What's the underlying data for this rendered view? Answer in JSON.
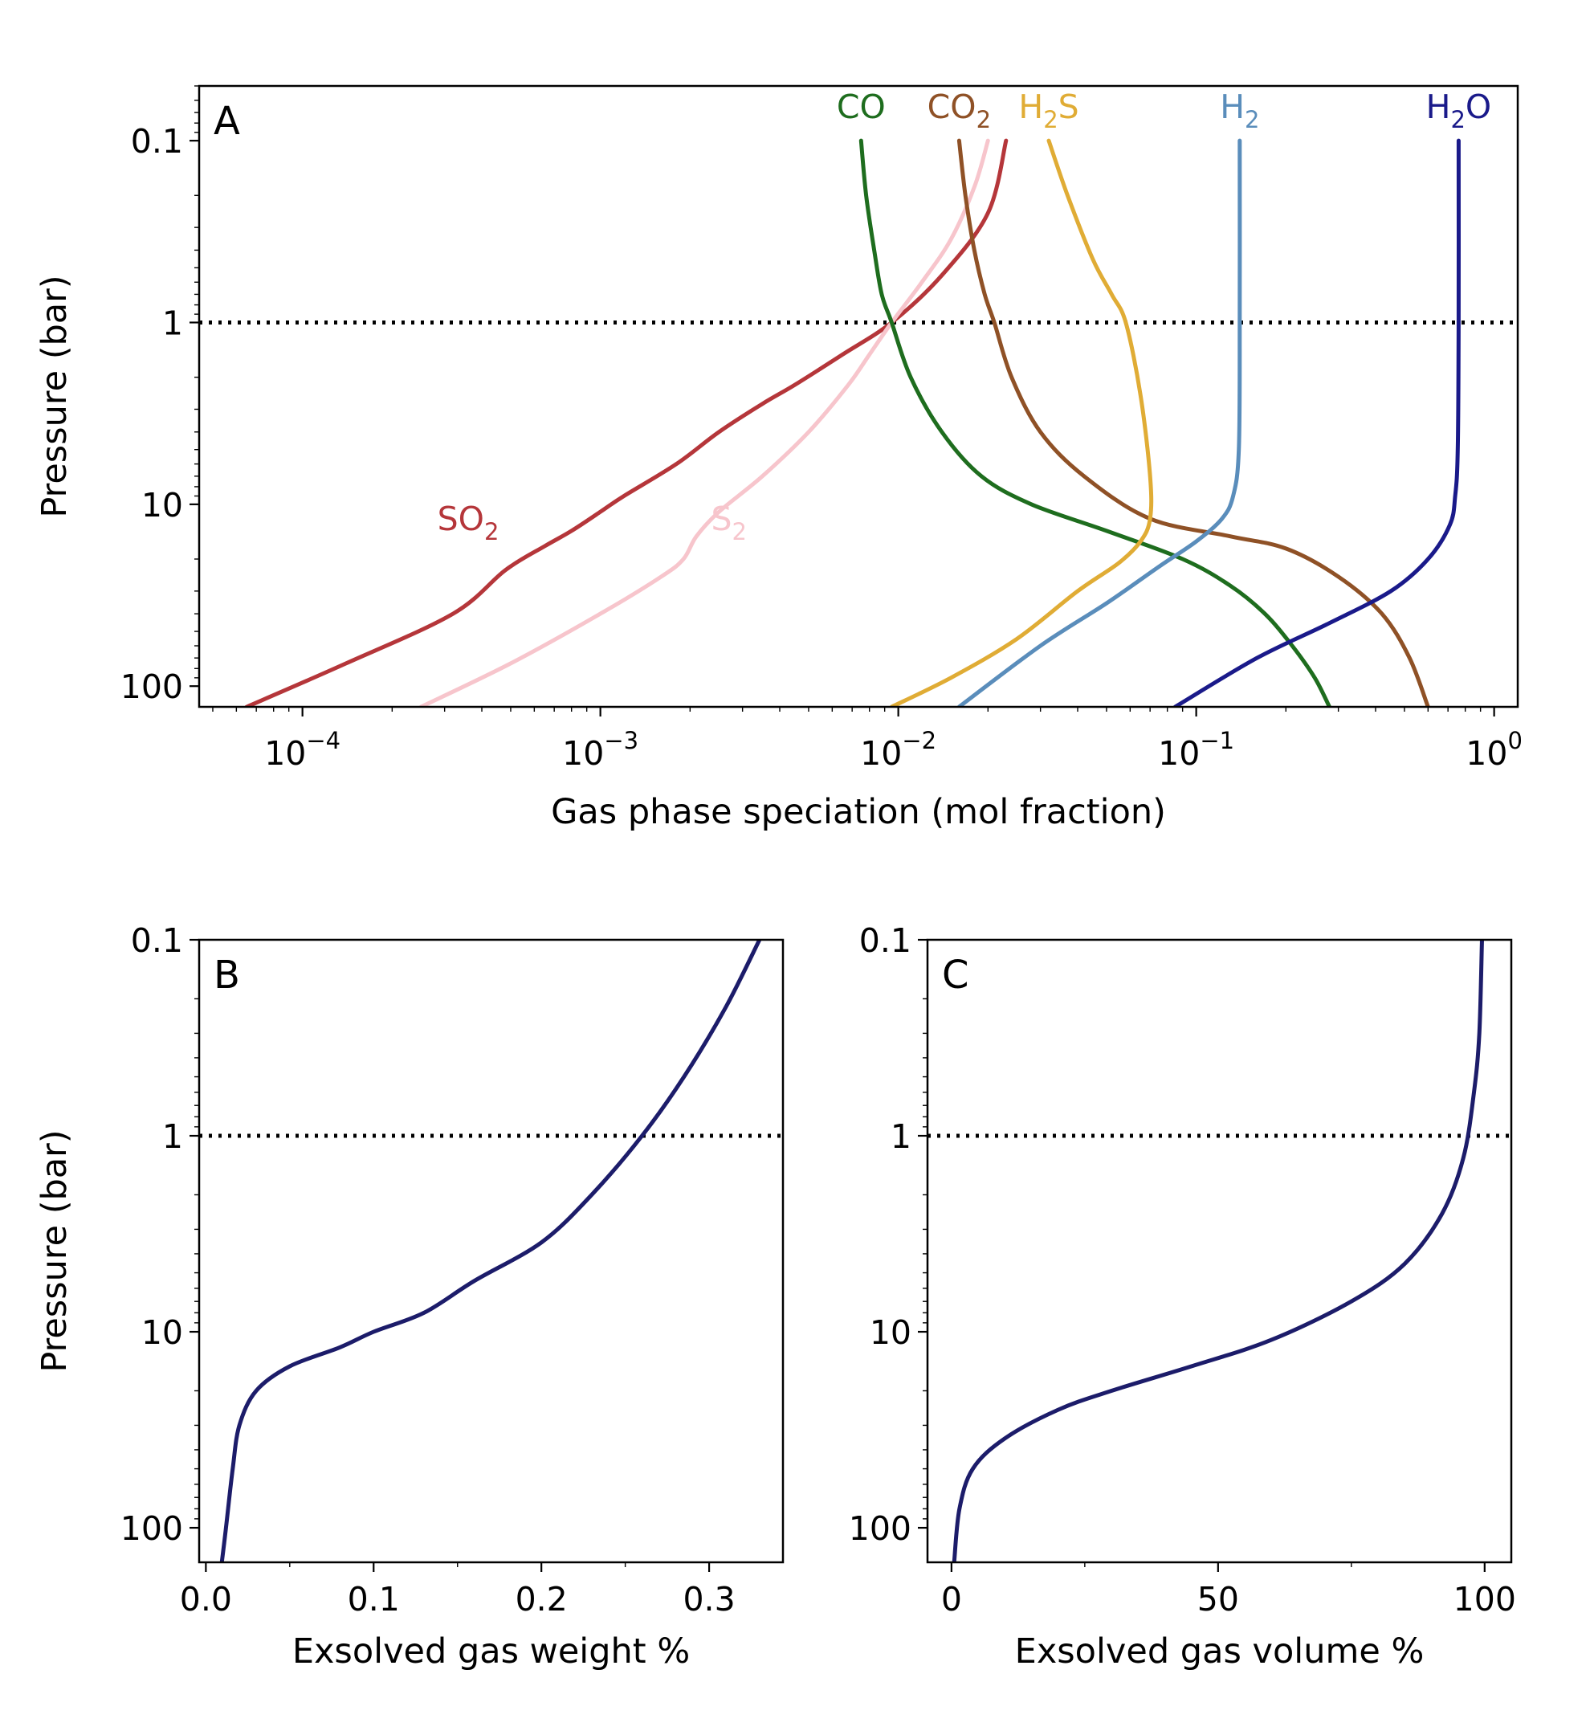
{
  "chart_data": [
    {
      "panel": "A",
      "type": "line",
      "xscale": "log",
      "yscale": "log",
      "y_inverted": true,
      "xlabel": "Gas phase speciation (mol fraction)",
      "ylabel": "Pressure (bar)",
      "xlim": [
        4.5e-05,
        1.2
      ],
      "ylim": [
        0.05,
        130
      ],
      "x_ticks": [
        0.0001,
        0.001,
        0.01,
        0.1,
        1
      ],
      "x_tick_labels": [
        {
          "base": "10",
          "exp": "−4"
        },
        {
          "base": "10",
          "exp": "−3"
        },
        {
          "base": "10",
          "exp": "−2"
        },
        {
          "base": "10",
          "exp": "−1"
        },
        {
          "base": "10",
          "exp": "0"
        }
      ],
      "y_ticks": [
        0.1,
        1,
        10,
        100
      ],
      "y_tick_labels": [
        "0.1",
        "1",
        "10",
        "100"
      ],
      "reference_line": {
        "y": 1,
        "style": "dotted"
      },
      "series": [
        {
          "name": "SO2",
          "label": {
            "base": "SO",
            "sub": "2"
          },
          "label_placement": "left",
          "color": "#b5363a",
          "points": [
            [
              6.5e-05,
              130
            ],
            [
              0.00014,
              75
            ],
            [
              0.00032,
              40
            ],
            [
              0.00048,
              23
            ],
            [
              0.00065,
              17
            ],
            [
              0.0008,
              14
            ],
            [
              0.001,
              11
            ],
            [
              0.0012,
              9
            ],
            [
              0.0018,
              6
            ],
            [
              0.0025,
              4
            ],
            [
              0.0035,
              2.8
            ],
            [
              0.0045,
              2.2
            ],
            [
              0.0065,
              1.5
            ],
            [
              0.0095,
              1
            ],
            [
              0.014,
              0.55
            ],
            [
              0.02,
              0.25
            ],
            [
              0.023,
              0.1
            ]
          ]
        },
        {
          "name": "S2",
          "label": {
            "base": "S",
            "sub": "2"
          },
          "label_placement": "right",
          "color": "#f7c5cc",
          "points": [
            [
              0.00025,
              130
            ],
            [
              0.0005,
              75
            ],
            [
              0.001,
              40
            ],
            [
              0.0016,
              25
            ],
            [
              0.0019,
              20
            ],
            [
              0.0021,
              15
            ],
            [
              0.0025,
              11
            ],
            [
              0.0035,
              7
            ],
            [
              0.005,
              4
            ],
            [
              0.0068,
              2.2
            ],
            [
              0.008,
              1.5
            ],
            [
              0.0095,
              1
            ],
            [
              0.012,
              0.6
            ],
            [
              0.015,
              0.35
            ],
            [
              0.018,
              0.18
            ],
            [
              0.02,
              0.1
            ]
          ]
        },
        {
          "name": "CO",
          "label": {
            "base": "CO",
            "sub": ""
          },
          "label_placement": "top",
          "color": "#1e6d1e",
          "points": [
            [
              0.0075,
              0.1
            ],
            [
              0.0078,
              0.2
            ],
            [
              0.0083,
              0.4
            ],
            [
              0.0088,
              0.7
            ],
            [
              0.0095,
              1
            ],
            [
              0.011,
              2
            ],
            [
              0.014,
              4
            ],
            [
              0.019,
              7
            ],
            [
              0.028,
              10
            ],
            [
              0.05,
              14
            ],
            [
              0.09,
              20
            ],
            [
              0.13,
              28
            ],
            [
              0.17,
              40
            ],
            [
              0.21,
              60
            ],
            [
              0.25,
              90
            ],
            [
              0.28,
              130
            ]
          ]
        },
        {
          "name": "CO2",
          "label": {
            "base": "CO",
            "sub": "2"
          },
          "label_placement": "top",
          "color": "#8f5126",
          "points": [
            [
              0.016,
              0.1
            ],
            [
              0.0168,
              0.2
            ],
            [
              0.018,
              0.4
            ],
            [
              0.0195,
              0.7
            ],
            [
              0.021,
              1
            ],
            [
              0.024,
              2
            ],
            [
              0.03,
              4
            ],
            [
              0.042,
              7
            ],
            [
              0.07,
              12
            ],
            [
              0.13,
              15
            ],
            [
              0.2,
              17.5
            ],
            [
              0.3,
              25
            ],
            [
              0.42,
              40
            ],
            [
              0.52,
              70
            ],
            [
              0.6,
              130
            ]
          ]
        },
        {
          "name": "H2S",
          "label": {
            "base": "H",
            "sub": "2",
            "tail": "S"
          },
          "label_placement": "top",
          "color": "#e0ac35",
          "points": [
            [
              0.032,
              0.1
            ],
            [
              0.037,
              0.2
            ],
            [
              0.045,
              0.45
            ],
            [
              0.052,
              0.7
            ],
            [
              0.058,
              1
            ],
            [
              0.065,
              2.5
            ],
            [
              0.07,
              7
            ],
            [
              0.07,
              12
            ],
            [
              0.065,
              16
            ],
            [
              0.055,
              21
            ],
            [
              0.04,
              30
            ],
            [
              0.025,
              55
            ],
            [
              0.015,
              90
            ],
            [
              0.0095,
              130
            ]
          ]
        },
        {
          "name": "H2",
          "label": {
            "base": "H",
            "sub": "2"
          },
          "label_placement": "top",
          "color": "#5a8dbb",
          "points": [
            [
              0.14,
              0.1
            ],
            [
              0.14,
              1
            ],
            [
              0.139,
              5
            ],
            [
              0.133,
              9
            ],
            [
              0.122,
              12
            ],
            [
              0.1,
              16
            ],
            [
              0.075,
              22
            ],
            [
              0.05,
              35
            ],
            [
              0.03,
              60
            ],
            [
              0.016,
              130
            ]
          ]
        },
        {
          "name": "H2O",
          "label": {
            "base": "H",
            "sub": "2",
            "tail": "O"
          },
          "label_placement": "top",
          "color": "#1a1a8a",
          "points": [
            [
              0.76,
              0.1
            ],
            [
              0.76,
              1
            ],
            [
              0.755,
              5
            ],
            [
              0.74,
              9
            ],
            [
              0.71,
              13
            ],
            [
              0.6,
              20
            ],
            [
              0.45,
              30
            ],
            [
              0.28,
              45
            ],
            [
              0.16,
              70
            ],
            [
              0.085,
              130
            ]
          ]
        }
      ]
    },
    {
      "panel": "B",
      "type": "line",
      "xscale": "linear",
      "yscale": "log",
      "y_inverted": true,
      "xlabel": "Exsolved gas weight %",
      "ylabel": "Pressure (bar)",
      "xlim": [
        -0.004,
        0.344
      ],
      "ylim": [
        0.1,
        150
      ],
      "x_ticks": [
        0.0,
        0.1,
        0.2,
        0.3
      ],
      "x_tick_labels": [
        "0.0",
        "0.1",
        "0.2",
        "0.3"
      ],
      "y_ticks": [
        0.1,
        1,
        10,
        100
      ],
      "y_tick_labels": [
        "0.1",
        "1",
        "10",
        "100"
      ],
      "reference_line": {
        "y": 1,
        "style": "dotted"
      },
      "series": [
        {
          "name": "exsolved gas weight",
          "color": "#1c1c6a",
          "points": [
            [
              0.0095,
              150
            ],
            [
              0.012,
              100
            ],
            [
              0.016,
              50
            ],
            [
              0.02,
              30
            ],
            [
              0.03,
              20
            ],
            [
              0.05,
              15
            ],
            [
              0.08,
              12
            ],
            [
              0.1,
              10
            ],
            [
              0.13,
              8
            ],
            [
              0.16,
              5.5
            ],
            [
              0.2,
              3.5
            ],
            [
              0.23,
              2
            ],
            [
              0.26,
              1
            ],
            [
              0.285,
              0.5
            ],
            [
              0.31,
              0.22
            ],
            [
              0.33,
              0.1
            ]
          ]
        }
      ]
    },
    {
      "panel": "C",
      "type": "line",
      "xscale": "linear",
      "yscale": "log",
      "y_inverted": true,
      "xlabel": "Exsolved gas volume %",
      "ylabel": "",
      "xlim": [
        -4.5,
        105
      ],
      "ylim": [
        0.1,
        150
      ],
      "x_ticks": [
        0,
        50,
        100
      ],
      "x_tick_labels": [
        "0",
        "50",
        "100"
      ],
      "y_ticks": [
        0.1,
        1,
        10,
        100
      ],
      "y_tick_labels": [
        "0.1",
        "1",
        "10",
        "100"
      ],
      "reference_line": {
        "y": 1,
        "style": "dotted"
      },
      "series": [
        {
          "name": "exsolved gas volume",
          "color": "#1c1c6a",
          "points": [
            [
              0.5,
              150
            ],
            [
              1.5,
              80
            ],
            [
              4,
              50
            ],
            [
              10,
              35
            ],
            [
              20,
              25
            ],
            [
              30,
              20
            ],
            [
              45,
              15
            ],
            [
              60,
              11
            ],
            [
              75,
              7
            ],
            [
              85,
              4.5
            ],
            [
              92,
              2.5
            ],
            [
              96,
              1.3
            ],
            [
              98,
              0.6
            ],
            [
              99,
              0.3
            ],
            [
              99.5,
              0.1
            ]
          ]
        }
      ]
    }
  ]
}
